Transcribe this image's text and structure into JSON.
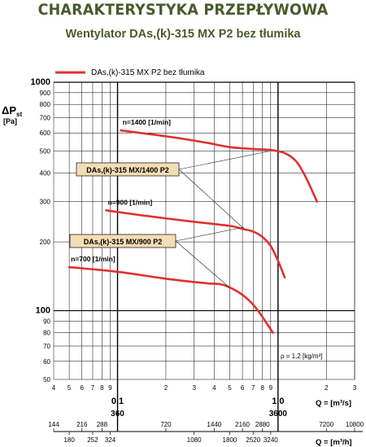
{
  "title": "CHARAKTERYSTYKA PRZEPŁYWOWA",
  "subtitle": "Wentylator DAs,(k)-315 MX P2 bez tłumika",
  "chart_data": {
    "type": "line",
    "legend": {
      "label": "DAs,(k)-315 MX P2 bez tłumika",
      "placement": "top-left",
      "color": "#e03030"
    },
    "y_axis": {
      "label_main": "ΔP",
      "label_sub": "st",
      "unit": "[Pa]",
      "scale": "log",
      "range": [
        50,
        1000
      ],
      "ticks": [
        1000,
        900,
        800,
        700,
        600,
        500,
        400,
        300,
        200,
        100,
        90,
        80,
        70,
        60,
        50
      ],
      "major_ticks": [
        1000,
        100
      ]
    },
    "x_axis": {
      "scale": "log",
      "range": [
        0.04,
        3
      ],
      "unit_m3s": "Q = [m³/s]",
      "unit_m3h": "Q = [m³/h]",
      "ticks": [
        {
          "v": 0.04,
          "t": "4"
        },
        {
          "v": 0.05,
          "t": "5"
        },
        {
          "v": 0.06,
          "t": "6"
        },
        {
          "v": 0.07,
          "t": "7"
        },
        {
          "v": 0.08,
          "t": "8"
        },
        {
          "v": 0.09,
          "t": "9"
        },
        {
          "v": 0.2,
          "t": "2"
        },
        {
          "v": 0.3,
          "t": "3"
        },
        {
          "v": 0.4,
          "t": "4"
        },
        {
          "v": 0.5,
          "t": "5"
        },
        {
          "v": 0.6,
          "t": "6"
        },
        {
          "v": 0.7,
          "t": "7"
        },
        {
          "v": 0.8,
          "t": "8"
        },
        {
          "v": 0.9,
          "t": "9"
        },
        {
          "v": 2,
          "t": "2"
        },
        {
          "v": 3,
          "t": "3"
        }
      ],
      "major_ticks": [
        {
          "v": 0.1,
          "t": "0.1",
          "m3h": "360"
        },
        {
          "v": 1.0,
          "t": "1.0",
          "m3h": "3600"
        }
      ],
      "m3h_upper": [
        "144",
        "216",
        "288",
        "720",
        "1440",
        "2160",
        "2880",
        "7200",
        "10800"
      ],
      "m3h_lower": [
        "180",
        "252",
        "324",
        "1080",
        "1800",
        "2520",
        "3240"
      ]
    },
    "series": [
      {
        "speed_label": "n=1400 [1/min]",
        "color": "#e03030",
        "x": [
          0.105,
          0.2,
          0.35,
          0.5,
          0.7,
          0.9,
          1.1,
          1.3,
          1.5,
          1.75
        ],
        "y": [
          615,
          580,
          545,
          520,
          510,
          505,
          490,
          450,
          380,
          300
        ]
      },
      {
        "speed_label": "n=900 [1/min]",
        "color": "#e03030",
        "x": [
          0.085,
          0.15,
          0.3,
          0.5,
          0.6,
          0.7,
          0.8,
          0.9,
          1.0,
          1.1
        ],
        "y": [
          275,
          260,
          245,
          235,
          228,
          222,
          210,
          192,
          165,
          140
        ]
      },
      {
        "speed_label": "n=700 [1/min]",
        "color": "#e03030",
        "x": [
          0.05,
          0.1,
          0.2,
          0.35,
          0.45,
          0.55,
          0.65,
          0.75,
          0.85,
          0.93
        ],
        "y": [
          155,
          148,
          138,
          132,
          130,
          122,
          112,
          100,
          88,
          80
        ]
      }
    ],
    "annotations": [
      {
        "text": "DAs,(k)-315 MX/1400 P2"
      },
      {
        "text": "DAs,(k)-315 MX/900 P2"
      },
      {
        "text": "ρ = 1,2 [kg/m³]"
      }
    ]
  }
}
